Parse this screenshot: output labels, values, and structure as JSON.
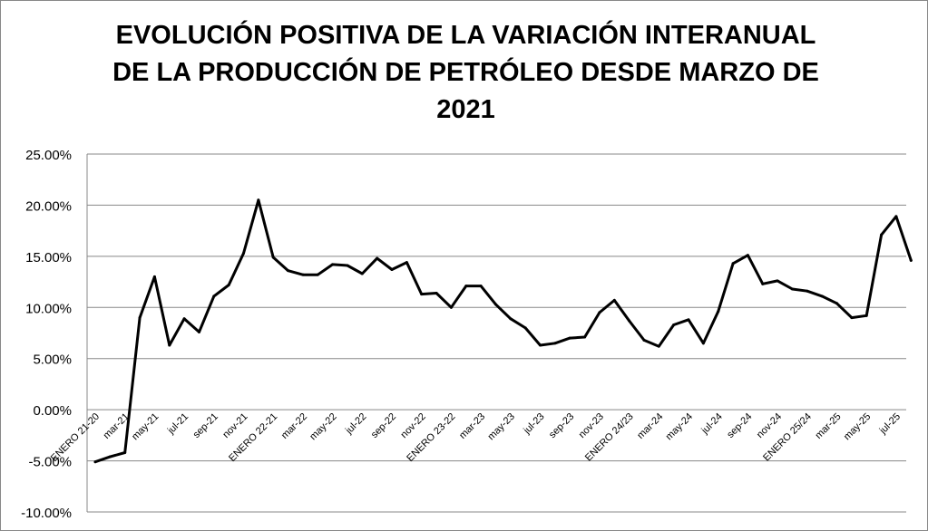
{
  "chart_data": {
    "type": "line",
    "title_lines": [
      "EVOLUCIÓN POSITIVA DE LA VARIACIÓN INTERANUAL",
      "DE LA PRODUCCIÓN DE PETRÓLEO DESDE MARZO DE",
      "2021"
    ],
    "xlabel": "",
    "ylabel": "",
    "ylim": [
      -10,
      25
    ],
    "yticks": [
      "-10.00%",
      "-5.00%",
      "0.00%",
      "5.00%",
      "10.00%",
      "15.00%",
      "20.00%",
      "25.00%"
    ],
    "x_tick_labels": [
      "ENERO 21-20",
      "mar-21",
      "may-21",
      "jul-21",
      "sep-21",
      "nov-21",
      "ENERO 22-21",
      "mar-22",
      "may-22",
      "jul-22",
      "sep-22",
      "nov-22",
      "ENERO 23-22",
      "mar-23",
      "may-23",
      "jul-23",
      "sep-23",
      "nov-23",
      "ENERO 24/23",
      "mar-24",
      "may-24",
      "jul-24",
      "sep-24",
      "nov-24",
      "ENERO 25/24",
      "mar-25",
      "may-25",
      "jul-25"
    ],
    "grid": "horizontal",
    "legend": "none",
    "line_color": "#000000",
    "series": [
      {
        "values": [
          -5.1,
          -4.6,
          -4.2,
          9.0,
          13.0,
          6.3,
          8.9,
          7.6,
          11.1,
          12.2,
          15.3,
          20.5,
          14.9,
          13.6,
          13.2,
          13.2,
          14.2,
          14.1,
          13.3,
          14.8,
          13.7,
          14.4,
          11.3,
          11.4,
          10.0,
          12.1,
          12.1,
          10.3,
          8.9,
          8.0,
          6.3,
          6.5,
          7.0,
          7.1,
          9.5,
          10.7,
          8.7,
          6.8,
          6.2,
          8.3,
          8.8,
          6.5,
          9.6,
          14.3,
          15.1,
          12.3,
          12.6,
          11.8,
          11.6,
          11.1,
          10.4,
          9.0,
          9.2,
          17.1,
          18.9,
          14.6
        ]
      }
    ]
  }
}
